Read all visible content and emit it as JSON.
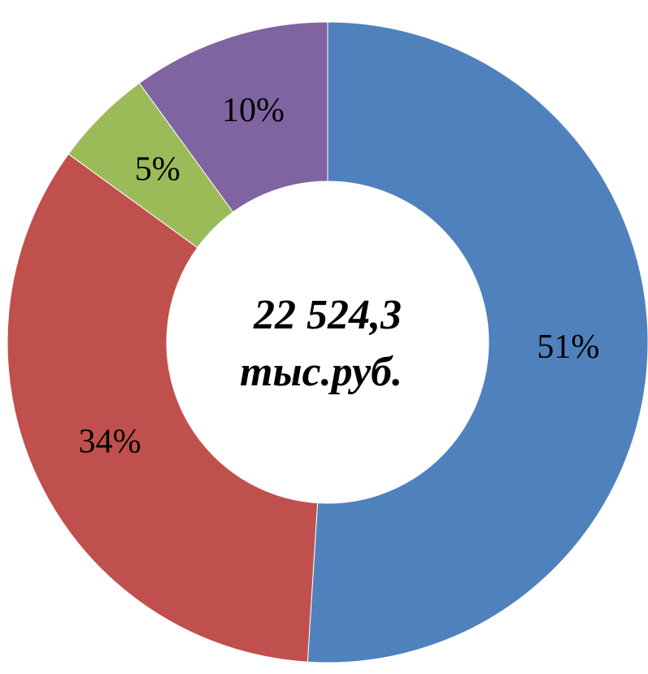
{
  "chart_data": {
    "type": "donut",
    "categories": [
      null,
      null,
      null,
      null
    ],
    "values": [
      51,
      34,
      5,
      10
    ],
    "value_labels": [
      "51%",
      "34%",
      "5%",
      "10%"
    ],
    "colors": [
      "#4f81bd",
      "#c0504d",
      "#9bbb59",
      "#8064a2"
    ],
    "center_label": [
      "22 524,3",
      "тыс.руб."
    ]
  }
}
